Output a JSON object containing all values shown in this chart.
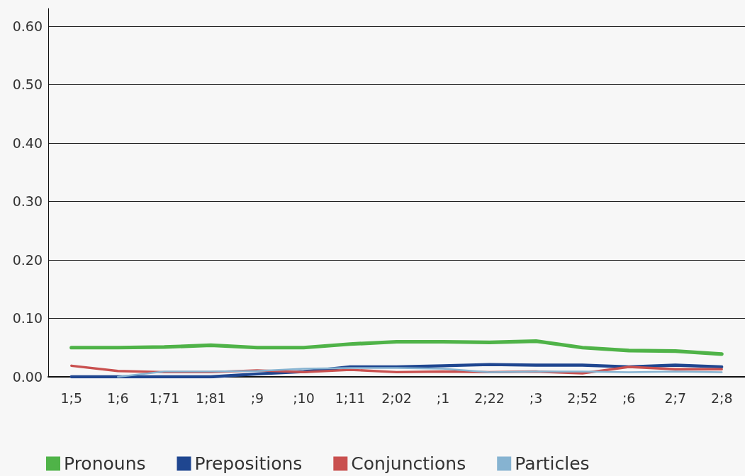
{
  "chart_data": {
    "type": "line",
    "categories": [
      "1;5",
      "1;6",
      "1;71",
      "1;81",
      ";9",
      ";10",
      "1;11",
      "2;02",
      ";1",
      "2;22",
      ";3",
      "2;52",
      ";6",
      "2;7",
      "2;8"
    ],
    "series": [
      {
        "name": "Pronouns",
        "color": "#4fb348",
        "values": [
          0.05,
          0.05,
          0.051,
          0.054,
          0.05,
          0.05,
          0.056,
          0.06,
          0.06,
          0.059,
          0.061,
          0.05,
          0.045,
          0.044,
          0.039
        ]
      },
      {
        "name": "Prepositions",
        "color": "#1f4690",
        "values": [
          0.0,
          0.0,
          0.0,
          0.0,
          0.005,
          0.009,
          0.017,
          0.017,
          0.019,
          0.021,
          0.02,
          0.02,
          0.017,
          0.02,
          0.017
        ]
      },
      {
        "name": "Conjunctions",
        "color": "#c9504f",
        "values": [
          0.019,
          0.01,
          0.008,
          0.008,
          0.011,
          0.008,
          0.012,
          0.008,
          0.009,
          0.008,
          0.009,
          0.006,
          0.017,
          0.013,
          0.013
        ]
      },
      {
        "name": "Particles",
        "color": "#86b3d1",
        "values": [
          null,
          0.0,
          0.009,
          0.009,
          0.01,
          0.014,
          0.015,
          0.015,
          0.014,
          0.008,
          0.009,
          0.009,
          0.008,
          0.009,
          0.008
        ]
      }
    ],
    "ylim": [
      0,
      0.63
    ],
    "yticks": [
      {
        "value": 0,
        "label": "0.00"
      },
      {
        "value": 0.1,
        "label": "0.10"
      },
      {
        "value": 0.2,
        "label": "0.20"
      },
      {
        "value": 0.3,
        "label": "0.30"
      },
      {
        "value": 0.4,
        "label": "0.40"
      },
      {
        "value": 0.5,
        "label": "0.50"
      },
      {
        "value": 0.6,
        "label": "0.60"
      }
    ],
    "grid": "y",
    "legend": "bottom",
    "marker": "none",
    "line_style": "solid"
  }
}
